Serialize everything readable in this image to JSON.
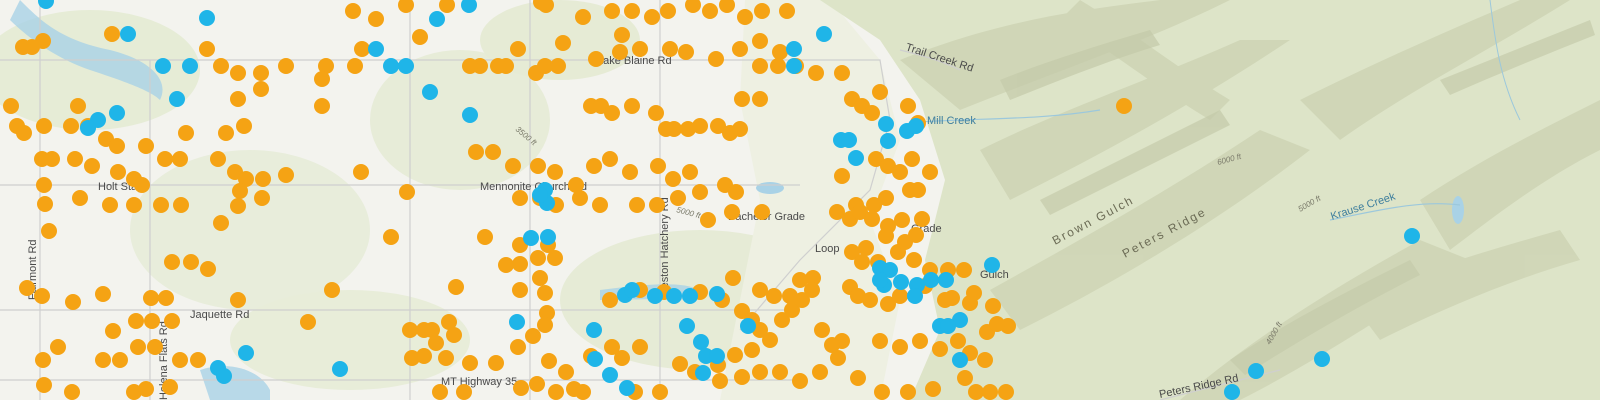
{
  "map": {
    "colors": {
      "background": "#f3f3ee",
      "vegetation": "#e2e9d2",
      "mountain": "#dfe3c8",
      "ridge_shade": "#c9cdb3",
      "roads": "#cfcfcf",
      "water": "#a9d2e6",
      "point_orange": "#f5a314",
      "point_blue": "#1fb5e8"
    },
    "labels": {
      "lake_blaine_rd": "Lake Blaine Rd",
      "trail_creek_rd": "Trail Creek Rd",
      "mill_creek": "Mill Creek",
      "holt_stage": "Holt Stage",
      "mennonite_church_rd": "Mennonite Church Rd",
      "bachelor_grade": "Bachelor Grade",
      "loop": "Loop",
      "brown_gulch": "Brown Gulch",
      "peters_ridge": "Peters Ridge",
      "krause_creek": "Krause Creek",
      "jaquette_rd": "Jaquette Rd",
      "fairmont_rd": "Fairmont Rd",
      "helena_flats_rd": "Helena Flats Rd",
      "creston_hatchery_rd": "Creston Hatchery Rd",
      "mt_highway_35": "MT Highway 35",
      "peters_ridge_rd": "Peters Ridge Rd",
      "elev_3500": "3500 ft",
      "elev_5000": "5000 ft",
      "elev_6000": "6000 ft",
      "elev_4000": "4000 ft",
      "elev_5000b": "5000 ft",
      "gulch": "Gulch",
      "grade": "Grade"
    }
  }
}
